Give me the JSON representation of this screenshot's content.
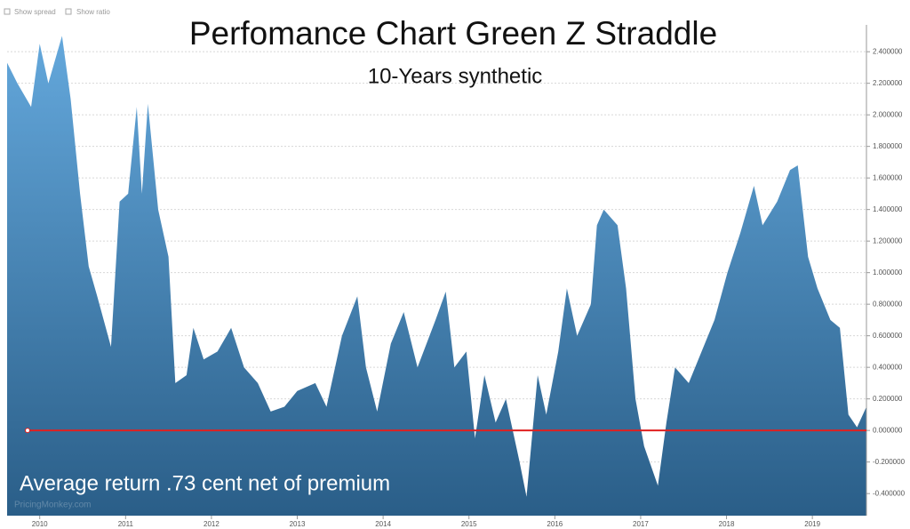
{
  "controls": [
    "Show spread",
    "Show ratio"
  ],
  "watermark": "PricingMonkey.com",
  "chart_data": {
    "type": "area",
    "title": "Perfomance Chart Green Z Straddle",
    "subtitle": "10-Years synthetic",
    "annotation": "Average return .73 cent net of premium",
    "color_top": "#64a8dc",
    "color_bottom": "#2a5e88",
    "reference_line": {
      "value": 0,
      "color": "#e02020"
    },
    "grid": true,
    "xlim": [
      2009.62,
      2019.63
    ],
    "xticks": [
      2010,
      2011,
      2012,
      2013,
      2014,
      2015,
      2016,
      2017,
      2018,
      2019
    ],
    "ylim": [
      -0.54,
      2.57
    ],
    "yticks": [
      {
        "value": -0.4,
        "label": "-0.400000"
      },
      {
        "value": -0.2,
        "label": "-0.200000"
      },
      {
        "value": 0,
        "label": "0.000000"
      },
      {
        "value": 0.2,
        "label": "0.200000"
      },
      {
        "value": 0.4,
        "label": "0.400000"
      },
      {
        "value": 0.6,
        "label": "0.600000"
      },
      {
        "value": 0.8,
        "label": "0.800000"
      },
      {
        "value": 1.0,
        "label": "1.000000"
      },
      {
        "value": 1.2,
        "label": "1.200000"
      },
      {
        "value": 1.4,
        "label": "1.400000"
      },
      {
        "value": 1.6,
        "label": "1.600000"
      },
      {
        "value": 1.8,
        "label": "1.800000"
      },
      {
        "value": 2.0,
        "label": "2.000000"
      },
      {
        "value": 2.2,
        "label": "2.200000"
      },
      {
        "value": 2.4,
        "label": "2.400000"
      }
    ],
    "x": [
      2009.62,
      2009.74,
      2009.9,
      2010.0,
      2010.1,
      2010.26,
      2010.36,
      2010.47,
      2010.57,
      2010.67,
      2010.83,
      2010.93,
      2011.03,
      2011.13,
      2011.19,
      2011.26,
      2011.38,
      2011.5,
      2011.58,
      2011.71,
      2011.79,
      2011.91,
      2012.07,
      2012.23,
      2012.38,
      2012.54,
      2012.69,
      2012.85,
      2013.0,
      2013.21,
      2013.34,
      2013.52,
      2013.7,
      2013.8,
      2013.93,
      2014.09,
      2014.24,
      2014.4,
      2014.61,
      2014.73,
      2014.83,
      2014.97,
      2015.07,
      2015.18,
      2015.31,
      2015.43,
      2015.59,
      2015.67,
      2015.8,
      2015.9,
      2016.04,
      2016.14,
      2016.26,
      2016.42,
      2016.49,
      2016.57,
      2016.73,
      2016.83,
      2016.94,
      2017.04,
      2017.2,
      2017.3,
      2017.4,
      2017.56,
      2017.71,
      2017.86,
      2018.01,
      2018.16,
      2018.32,
      2018.42,
      2018.59,
      2018.74,
      2018.83,
      2018.95,
      2019.06,
      2019.21,
      2019.32,
      2019.42,
      2019.52,
      2019.63
    ],
    "values": [
      2.33,
      2.2,
      2.05,
      2.45,
      2.2,
      2.5,
      2.1,
      1.5,
      1.04,
      0.85,
      0.53,
      1.45,
      1.5,
      2.05,
      1.5,
      2.07,
      1.4,
      1.1,
      0.3,
      0.35,
      0.65,
      0.45,
      0.5,
      0.65,
      0.4,
      0.3,
      0.12,
      0.15,
      0.25,
      0.3,
      0.15,
      0.6,
      0.85,
      0.4,
      0.12,
      0.55,
      0.75,
      0.4,
      0.7,
      0.88,
      0.4,
      0.5,
      -0.05,
      0.35,
      0.05,
      0.2,
      -0.2,
      -0.42,
      0.35,
      0.1,
      0.5,
      0.9,
      0.6,
      0.8,
      1.3,
      1.4,
      1.3,
      0.9,
      0.2,
      -0.1,
      -0.35,
      0.05,
      0.4,
      0.3,
      0.5,
      0.7,
      1.0,
      1.25,
      1.55,
      1.3,
      1.45,
      1.65,
      1.68,
      1.1,
      0.9,
      0.7,
      0.65,
      0.1,
      0.02,
      0.15
    ]
  }
}
